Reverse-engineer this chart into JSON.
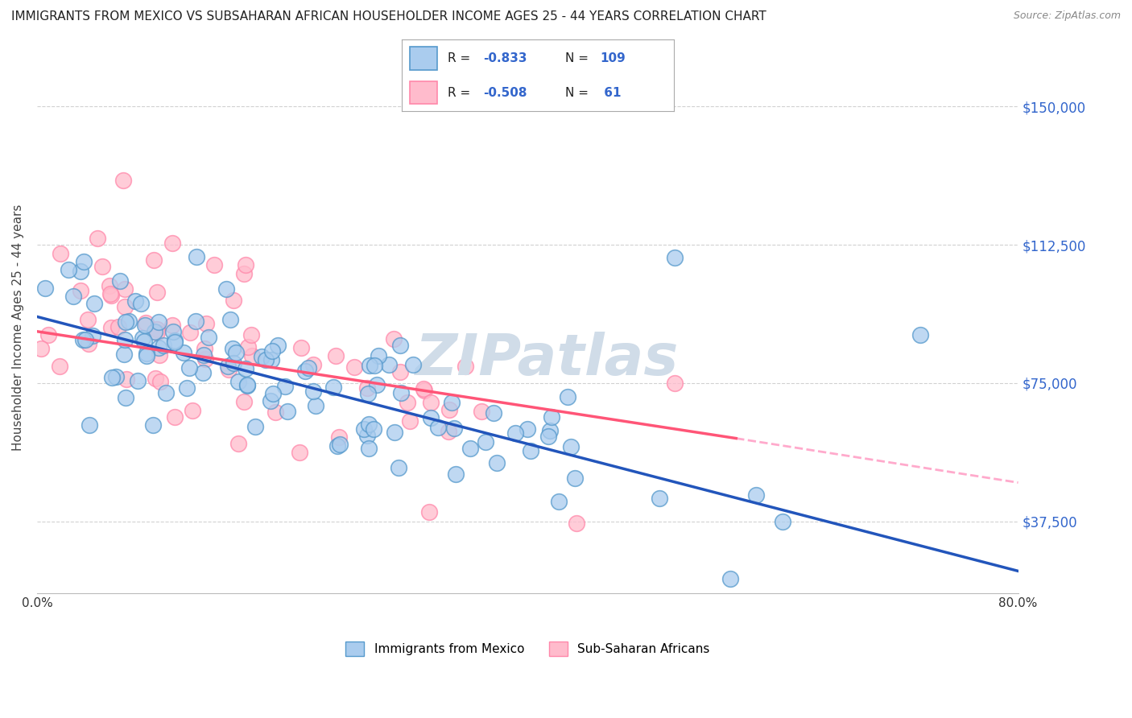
{
  "title": "IMMIGRANTS FROM MEXICO VS SUBSAHARAN AFRICAN HOUSEHOLDER INCOME AGES 25 - 44 YEARS CORRELATION CHART",
  "source": "Source: ZipAtlas.com",
  "ylabel": "Householder Income Ages 25 - 44 years",
  "xlim": [
    0.0,
    0.8
  ],
  "ylim": [
    18000,
    162000
  ],
  "yticks": [
    37500,
    75000,
    112500,
    150000
  ],
  "ytick_labels": [
    "$37,500",
    "$75,000",
    "$112,500",
    "$150,000"
  ],
  "xtick_positions": [
    0.0,
    0.1,
    0.2,
    0.3,
    0.4,
    0.5,
    0.6,
    0.7,
    0.8
  ],
  "xtick_labels": [
    "0.0%",
    "",
    "",
    "",
    "",
    "",
    "",
    "",
    "80.0%"
  ],
  "watermark": "ZIPatlas",
  "R_blue": -0.833,
  "N_blue": 109,
  "R_pink": -0.508,
  "N_pink": 61,
  "blue_trend": [
    0.0,
    93000,
    0.8,
    24000
  ],
  "pink_trend_solid": [
    0.0,
    89000,
    0.57,
    60000
  ],
  "pink_trend_dash": [
    0.57,
    60000,
    0.8,
    48000
  ],
  "background_color": "#ffffff",
  "grid_color": "#cccccc",
  "blue_scatter_face": "#aaccee",
  "blue_scatter_edge": "#5599cc",
  "pink_scatter_face": "#ffbbcc",
  "pink_scatter_edge": "#ff88aa",
  "blue_line_color": "#2255bb",
  "pink_line_color": "#ff5577",
  "pink_dash_color": "#ffaacc",
  "right_tick_color": "#3366cc",
  "title_fontsize": 11,
  "label_fontsize": 11,
  "tick_fontsize": 11
}
